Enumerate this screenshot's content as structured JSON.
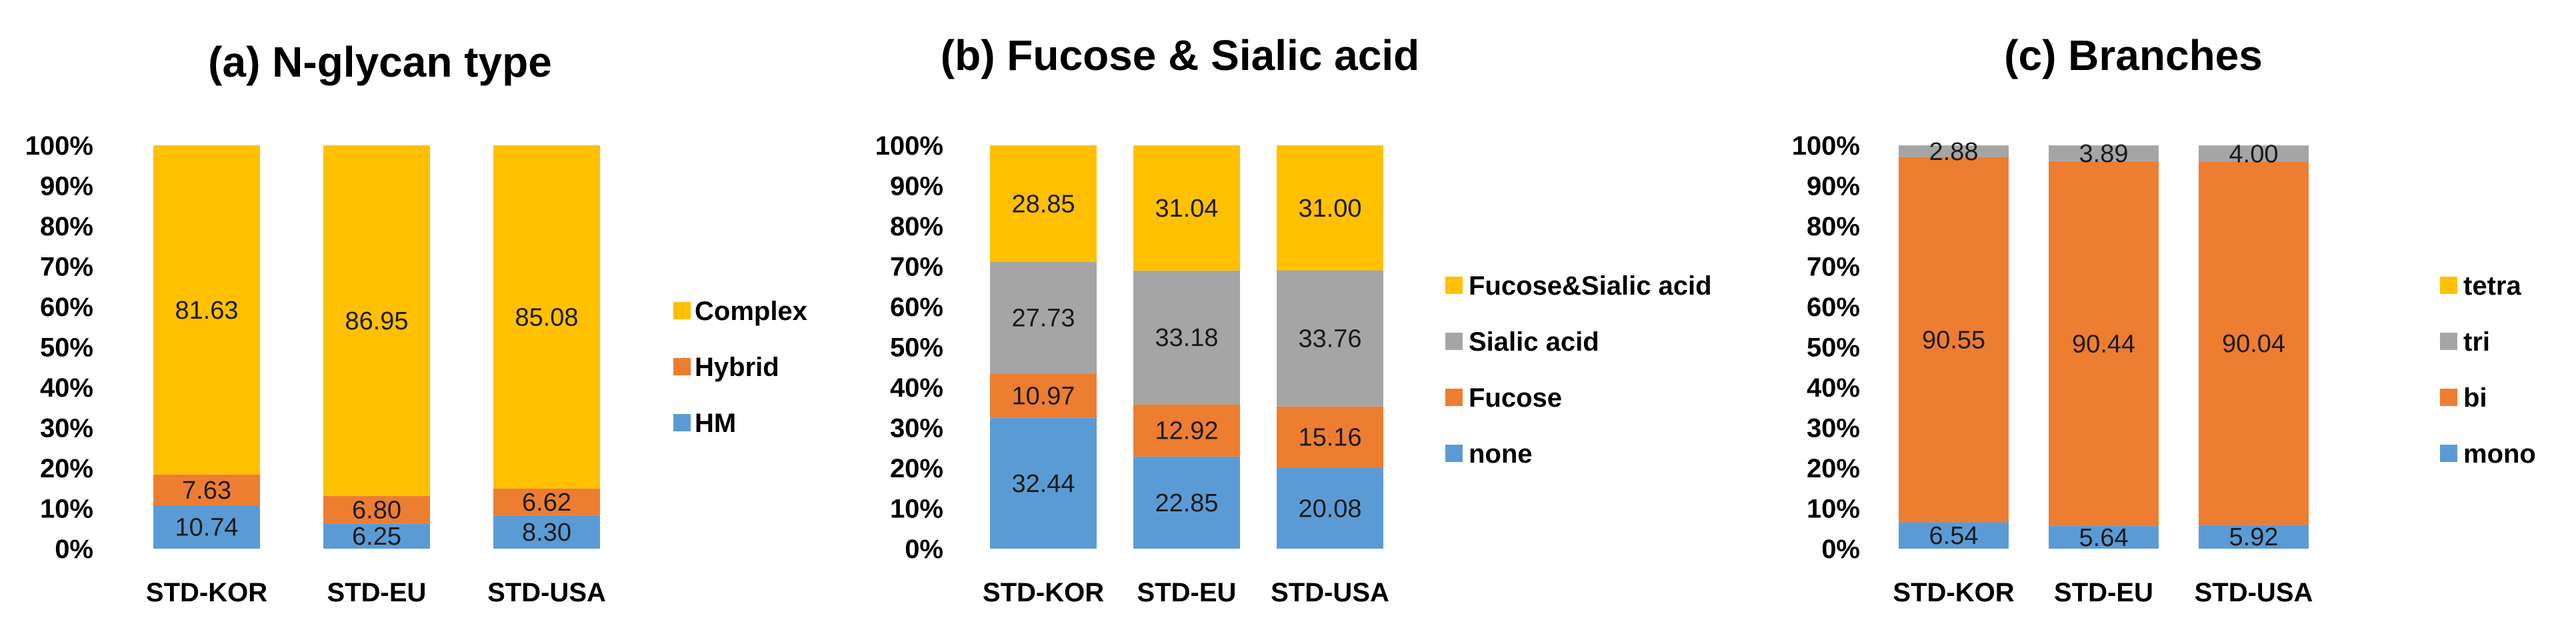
{
  "chart_data": [
    {
      "type": "bar",
      "stacked": "percent",
      "title": "(a)  N-glycan type",
      "categories": [
        "STD-KOR",
        "STD-EU",
        "STD-USA"
      ],
      "yticks": [
        "0%",
        "10%",
        "20%",
        "30%",
        "40%",
        "50%",
        "60%",
        "70%",
        "80%",
        "90%",
        "100%"
      ],
      "ylim": [
        0,
        100
      ],
      "grid": false,
      "legend_position": "right",
      "series": [
        {
          "name": "HM",
          "values": [
            10.74,
            6.25,
            8.3
          ],
          "labels": [
            "10.74",
            "6.25",
            "8.30"
          ],
          "color": "#5B9BD5"
        },
        {
          "name": "Hybrid",
          "values": [
            7.63,
            6.8,
            6.62
          ],
          "labels": [
            "7.63",
            "6.80",
            "6.62"
          ],
          "color": "#ED7D31"
        },
        {
          "name": "Complex",
          "values": [
            81.63,
            86.95,
            85.08
          ],
          "labels": [
            "81.63",
            "86.95",
            "85.08"
          ],
          "color": "#FFC000"
        }
      ]
    },
    {
      "type": "bar",
      "stacked": "percent",
      "title": "(b)  Fucose  &  Sialic acid",
      "categories": [
        "STD-KOR",
        "STD-EU",
        "STD-USA"
      ],
      "yticks": [
        "0%",
        "10%",
        "20%",
        "30%",
        "40%",
        "50%",
        "60%",
        "70%",
        "80%",
        "90%",
        "100%"
      ],
      "ylim": [
        0,
        100
      ],
      "grid": false,
      "legend_position": "right",
      "series": [
        {
          "name": "none",
          "values": [
            32.44,
            22.85,
            20.08
          ],
          "labels": [
            "32.44",
            "22.85",
            "20.08"
          ],
          "color": "#5B9BD5"
        },
        {
          "name": "Fucose",
          "values": [
            10.97,
            12.92,
            15.16
          ],
          "labels": [
            "10.97",
            "12.92",
            "15.16"
          ],
          "color": "#ED7D31"
        },
        {
          "name": "Sialic acid",
          "values": [
            27.73,
            33.18,
            33.76
          ],
          "labels": [
            "27.73",
            "33.18",
            "33.76"
          ],
          "color": "#A5A5A5"
        },
        {
          "name": "Fucose&Sialic acid",
          "values": [
            28.85,
            31.04,
            31.0
          ],
          "labels": [
            "28.85",
            "31.04",
            "31.00"
          ],
          "color": "#FFC000"
        }
      ]
    },
    {
      "type": "bar",
      "stacked": "percent",
      "title": "(c)  Branches",
      "categories": [
        "STD-KOR",
        "STD-EU",
        "STD-USA"
      ],
      "yticks": [
        "0%",
        "10%",
        "20%",
        "30%",
        "40%",
        "50%",
        "60%",
        "70%",
        "80%",
        "90%",
        "100%"
      ],
      "ylim": [
        0,
        100
      ],
      "grid": false,
      "legend_position": "right",
      "series": [
        {
          "name": "mono",
          "values": [
            6.54,
            5.64,
            5.92
          ],
          "labels": [
            "6.54",
            "5.64",
            "5.92"
          ],
          "color": "#5B9BD5"
        },
        {
          "name": "bi",
          "values": [
            90.55,
            90.44,
            90.04
          ],
          "labels": [
            "90.55",
            "90.44",
            "90.04"
          ],
          "color": "#ED7D31"
        },
        {
          "name": "tri",
          "values": [
            2.88,
            3.89,
            4.0
          ],
          "labels": [
            "2.88",
            "3.89",
            "4.00"
          ],
          "color": "#A5A5A5"
        },
        {
          "name": "tetra",
          "values": [
            0.03,
            0.03,
            0.04
          ],
          "labels": [
            "",
            "",
            ""
          ],
          "color": "#FFC000"
        }
      ]
    }
  ]
}
